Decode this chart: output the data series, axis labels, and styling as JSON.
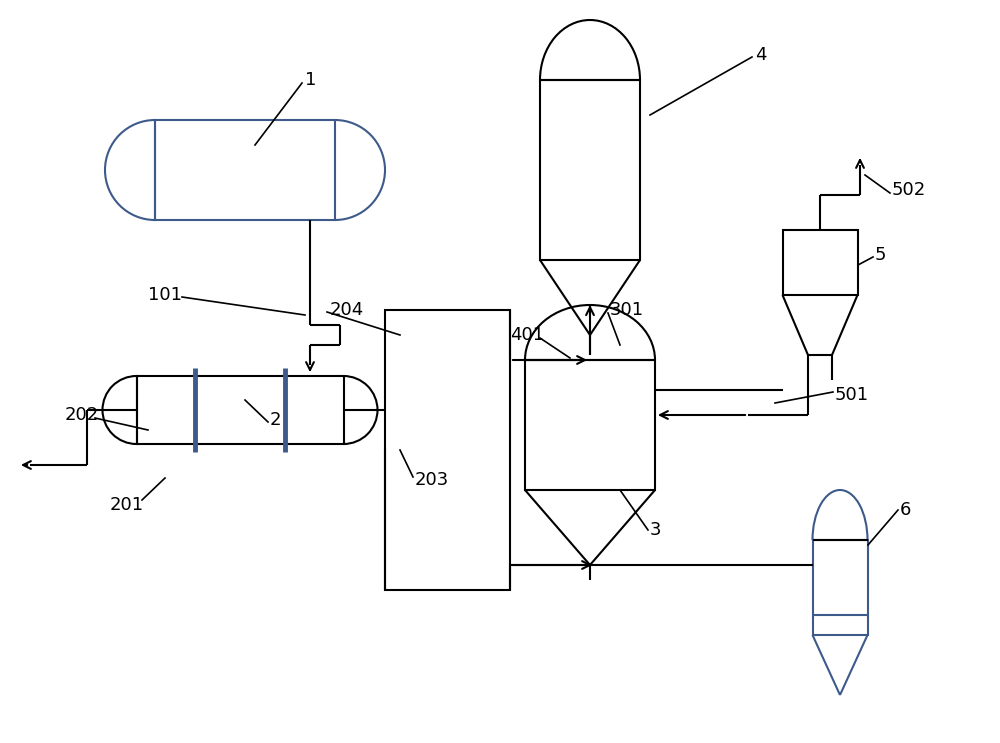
{
  "bg_color": "#ffffff",
  "lc": "#000000",
  "bc": "#3d5a8a",
  "lw": 1.5,
  "lw_thick": 2.0,
  "fs": 13
}
